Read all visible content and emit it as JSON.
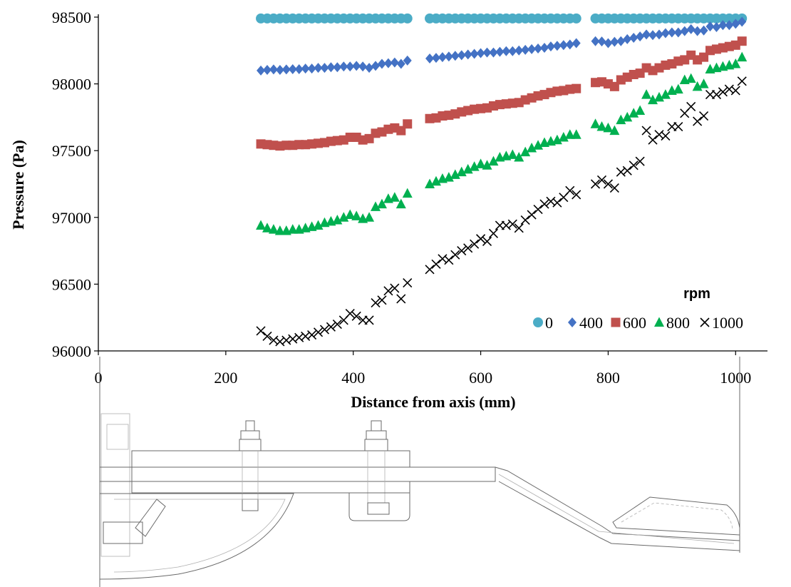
{
  "chart_data": {
    "type": "scatter",
    "title": "",
    "xlabel": "Distance from axis (mm)",
    "ylabel": "Pressure (Pa)",
    "xlim": [
      0,
      1050
    ],
    "ylim": [
      96000,
      98500
    ],
    "x_ticks": [
      0,
      200,
      400,
      600,
      800,
      1000
    ],
    "y_ticks": [
      96000,
      96500,
      97000,
      97500,
      98000,
      98500
    ],
    "grid": false,
    "legend": {
      "title": "rpm",
      "position": "lower-right inside plot"
    },
    "series": [
      {
        "name": "0",
        "marker": "circle",
        "color": "#4bacc6",
        "x": [
          255,
          265,
          275,
          285,
          295,
          305,
          315,
          325,
          335,
          345,
          355,
          365,
          375,
          385,
          395,
          405,
          415,
          425,
          435,
          445,
          455,
          465,
          475,
          485,
          520,
          530,
          540,
          550,
          560,
          570,
          580,
          590,
          600,
          610,
          620,
          630,
          640,
          650,
          660,
          670,
          680,
          690,
          700,
          710,
          720,
          730,
          740,
          750,
          780,
          790,
          800,
          810,
          820,
          830,
          840,
          850,
          860,
          870,
          880,
          890,
          900,
          910,
          920,
          930,
          940,
          950,
          960,
          970,
          980,
          990,
          1000,
          1010
        ],
        "y": [
          98490,
          98490,
          98490,
          98490,
          98490,
          98490,
          98490,
          98490,
          98490,
          98490,
          98490,
          98490,
          98490,
          98490,
          98490,
          98490,
          98490,
          98490,
          98490,
          98490,
          98490,
          98490,
          98490,
          98490,
          98490,
          98490,
          98490,
          98490,
          98490,
          98490,
          98490,
          98490,
          98490,
          98490,
          98490,
          98490,
          98490,
          98490,
          98490,
          98490,
          98490,
          98490,
          98490,
          98490,
          98490,
          98490,
          98490,
          98490,
          98490,
          98490,
          98490,
          98490,
          98490,
          98490,
          98490,
          98490,
          98490,
          98490,
          98490,
          98490,
          98490,
          98490,
          98490,
          98490,
          98490,
          98490,
          98490,
          98490,
          98490,
          98490,
          98490,
          98490
        ]
      },
      {
        "name": "400",
        "marker": "diamond",
        "color": "#4472c4",
        "x": [
          255,
          265,
          275,
          285,
          295,
          305,
          315,
          325,
          335,
          345,
          355,
          365,
          375,
          385,
          395,
          405,
          415,
          425,
          435,
          445,
          455,
          465,
          475,
          485,
          520,
          530,
          540,
          550,
          560,
          570,
          580,
          590,
          600,
          610,
          620,
          630,
          640,
          650,
          660,
          670,
          680,
          690,
          700,
          710,
          720,
          730,
          740,
          750,
          780,
          790,
          800,
          810,
          820,
          830,
          840,
          850,
          860,
          870,
          880,
          890,
          900,
          910,
          920,
          930,
          940,
          950,
          960,
          970,
          980,
          990,
          1000,
          1010
        ],
        "y": [
          98100,
          98105,
          98108,
          98105,
          98108,
          98110,
          98110,
          98115,
          98115,
          98120,
          98120,
          98125,
          98125,
          98130,
          98130,
          98135,
          98130,
          98120,
          98135,
          98150,
          98155,
          98160,
          98150,
          98175,
          98190,
          98195,
          98200,
          98205,
          98210,
          98215,
          98220,
          98225,
          98230,
          98235,
          98235,
          98240,
          98245,
          98245,
          98250,
          98255,
          98260,
          98265,
          98270,
          98280,
          98285,
          98290,
          98295,
          98305,
          98320,
          98318,
          98305,
          98315,
          98320,
          98335,
          98345,
          98355,
          98370,
          98365,
          98370,
          98380,
          98385,
          98385,
          98395,
          98410,
          98395,
          98400,
          98430,
          98425,
          98440,
          98440,
          98450,
          98465
        ]
      },
      {
        "name": "600",
        "marker": "square",
        "color": "#c0504d",
        "x": [
          255,
          265,
          275,
          285,
          295,
          305,
          315,
          325,
          335,
          345,
          355,
          365,
          375,
          385,
          395,
          405,
          415,
          425,
          435,
          445,
          455,
          465,
          475,
          485,
          520,
          530,
          540,
          550,
          560,
          570,
          580,
          590,
          600,
          610,
          620,
          630,
          640,
          650,
          660,
          670,
          680,
          690,
          700,
          710,
          720,
          730,
          740,
          750,
          780,
          790,
          800,
          810,
          820,
          830,
          840,
          850,
          860,
          870,
          880,
          890,
          900,
          910,
          920,
          930,
          940,
          950,
          960,
          970,
          980,
          990,
          1000,
          1010
        ],
        "y": [
          97550,
          97545,
          97540,
          97535,
          97540,
          97540,
          97545,
          97545,
          97550,
          97555,
          97560,
          97570,
          97575,
          97580,
          97600,
          97600,
          97580,
          97590,
          97630,
          97640,
          97660,
          97670,
          97650,
          97700,
          97740,
          97745,
          97760,
          97765,
          97775,
          97790,
          97800,
          97810,
          97815,
          97820,
          97835,
          97845,
          97850,
          97855,
          97860,
          97880,
          97895,
          97910,
          97920,
          97935,
          97945,
          97950,
          97960,
          97965,
          98010,
          98015,
          98000,
          97980,
          98030,
          98050,
          98070,
          98080,
          98120,
          98100,
          98120,
          98140,
          98150,
          98170,
          98180,
          98215,
          98180,
          98200,
          98250,
          98260,
          98270,
          98280,
          98290,
          98320
        ]
      },
      {
        "name": "800",
        "marker": "triangle",
        "color": "#00b050",
        "x": [
          255,
          265,
          275,
          285,
          295,
          305,
          315,
          325,
          335,
          345,
          355,
          365,
          375,
          385,
          395,
          405,
          415,
          425,
          435,
          445,
          455,
          465,
          475,
          485,
          520,
          530,
          540,
          550,
          560,
          570,
          580,
          590,
          600,
          610,
          620,
          630,
          640,
          650,
          660,
          670,
          680,
          690,
          700,
          710,
          720,
          730,
          740,
          750,
          780,
          790,
          800,
          810,
          820,
          830,
          840,
          850,
          860,
          870,
          880,
          890,
          900,
          910,
          920,
          930,
          940,
          950,
          960,
          970,
          980,
          990,
          1000,
          1010
        ],
        "y": [
          96940,
          96920,
          96910,
          96900,
          96900,
          96910,
          96910,
          96920,
          96930,
          96940,
          96960,
          96970,
          96980,
          97000,
          97020,
          97010,
          96990,
          97000,
          97080,
          97100,
          97140,
          97150,
          97100,
          97180,
          97250,
          97270,
          97290,
          97300,
          97320,
          97340,
          97360,
          97380,
          97400,
          97390,
          97420,
          97450,
          97460,
          97470,
          97450,
          97490,
          97520,
          97540,
          97560,
          97570,
          97580,
          97600,
          97620,
          97620,
          97700,
          97680,
          97670,
          97650,
          97730,
          97750,
          97780,
          97800,
          97920,
          97880,
          97900,
          97920,
          97950,
          97960,
          98030,
          98040,
          97980,
          98000,
          98110,
          98120,
          98130,
          98140,
          98150,
          98200
        ]
      },
      {
        "name": "1000",
        "marker": "cross",
        "color": "#000000",
        "x": [
          255,
          265,
          275,
          285,
          295,
          305,
          315,
          325,
          335,
          345,
          355,
          365,
          375,
          385,
          395,
          405,
          415,
          425,
          435,
          445,
          455,
          465,
          475,
          485,
          520,
          530,
          540,
          550,
          560,
          570,
          580,
          590,
          600,
          610,
          620,
          630,
          640,
          650,
          660,
          670,
          680,
          690,
          700,
          710,
          720,
          730,
          740,
          750,
          780,
          790,
          800,
          810,
          820,
          830,
          840,
          850,
          860,
          870,
          880,
          890,
          900,
          910,
          920,
          930,
          940,
          950,
          960,
          970,
          980,
          990,
          1000,
          1010
        ],
        "y": [
          96150,
          96110,
          96080,
          96070,
          96080,
          96090,
          96100,
          96110,
          96120,
          96140,
          96160,
          96180,
          96200,
          96230,
          96280,
          96260,
          96230,
          96230,
          96360,
          96380,
          96450,
          96470,
          96390,
          96510,
          96610,
          96650,
          96690,
          96680,
          96720,
          96750,
          96770,
          96800,
          96840,
          96820,
          96880,
          96940,
          96940,
          96950,
          96920,
          96980,
          97020,
          97060,
          97100,
          97120,
          97110,
          97150,
          97200,
          97170,
          97250,
          97280,
          97250,
          97220,
          97340,
          97350,
          97390,
          97420,
          97650,
          97580,
          97620,
          97610,
          97680,
          97680,
          97780,
          97830,
          97720,
          97760,
          97920,
          97920,
          97940,
          97960,
          97950,
          98020
        ]
      }
    ]
  },
  "drawing": {
    "description_label": ""
  }
}
